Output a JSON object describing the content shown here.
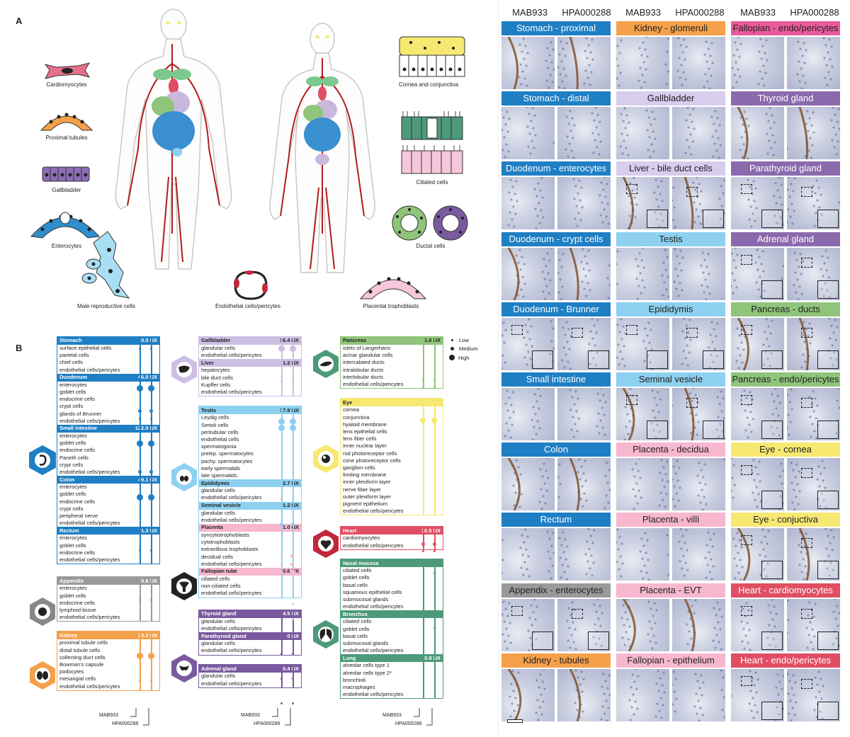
{
  "panel_a_label": "A",
  "panel_b_label": "B",
  "cell_types": {
    "cardiomyocytes": "Cardiomyocytes",
    "proximal_tubules": "Proximal tubules",
    "gallbladder": "Gallbladder",
    "enterocytes": "Enterocytes",
    "male_reproductive": "Male reproductive cells",
    "endothelial": "Endothelial cells/pericytes",
    "placental": "Placental trophoblasts",
    "cornea": "Cornea and conjunctiva",
    "ciliated": "Ciliated cells",
    "ductal": "Ductal cells"
  },
  "legend": {
    "low": "Low",
    "medium": "Medium",
    "high": "High"
  },
  "antibody_axis": {
    "ab1": "MAB933",
    "ab2": "HPA000288"
  },
  "colors": {
    "gi_blue": "#1f7fc4",
    "appendix_grey": "#9a9a9a",
    "kidney_orange": "#f5a04a",
    "gallbladder_lilac": "#cdbfe3",
    "testis_lightblue": "#8dd0ef",
    "placenta_pink": "#f6b7cf",
    "endocrine_purple": "#7a5a9f",
    "pancreas_green": "#8fc47a",
    "eye_yellow": "#f7e872",
    "heart_red": "#e04e63",
    "resp_green": "#4c9a7a"
  },
  "col1": [
    {
      "name": "Stomach",
      "nx": "0.5 NX",
      "color": "#1f7fc4",
      "rows": [
        "surface epithelial cells",
        "parietal cells",
        "chief cells",
        "endothelial cells/pericytes"
      ]
    },
    {
      "name": "Duodenum",
      "nx": "46.0 NX",
      "color": "#1f7fc4",
      "rows": [
        "enterocytes",
        "goblet cells",
        "endocrine cells",
        "crypt cells",
        "glands of Brunner",
        "endothelial cells/pericytes"
      ]
    },
    {
      "name": "Small intestine",
      "nx": "122.0 NX",
      "color": "#1f7fc4",
      "rows": [
        "enterocytes",
        "goblet cells",
        "endocrine cells",
        "Paneth cells",
        "crypt cells",
        "endothelial cells/pericytes"
      ]
    },
    {
      "name": "Colon",
      "nx": "49.1 NX",
      "color": "#1f7fc4",
      "rows": [
        "enterocytes",
        "goblet cells",
        "endocrine cells",
        "crypt cells",
        "peripheral nerve",
        "endothelial cells/pericytes"
      ]
    },
    {
      "name": "Rectum",
      "nx": "1.3 NX",
      "color": "#1f7fc4",
      "rows": [
        "enterocytes",
        "goblet cells",
        "endocrine cells",
        "endothelial cells/pericytes"
      ]
    },
    {
      "name": "Appendix",
      "nx": "0.8 NX",
      "color": "#9a9a9a",
      "rows": [
        "enterocytes",
        "goblet cells",
        "endocrine cells",
        "lymphoid tissue",
        "endothelial cells/pericytes"
      ]
    },
    {
      "name": "Kidney",
      "nx": "23.2 NX",
      "color": "#f5a04a",
      "rows": [
        "proximal tubule cells",
        "distal tubule cells",
        "collecting duct cells",
        "Bowman's capsule",
        "podocytes",
        "mesangial cells",
        "endothelial cells/pericytes"
      ]
    }
  ],
  "col2": [
    {
      "name": "Gallbladder",
      "nx": "16.4 NX",
      "color": "#cdbfe3",
      "rows": [
        "glandular cells",
        "endothelial cells/pericytes"
      ]
    },
    {
      "name": "Liver",
      "nx": "1.2 NX",
      "color": "#cdbfe3",
      "rows": [
        "hepatocytes",
        "bile duct cells",
        "Kupffer cells",
        "endothelial cells/pericytes"
      ]
    },
    {
      "name": "Testis",
      "nx": "17.9 NX",
      "color": "#8dd0ef",
      "rows": [
        "Leydig cells",
        "Sertoli cells",
        "peritubular cells",
        "endothelial cells",
        "spermatogonia",
        "prelep. spermatocytes",
        "pachy. spermatocytes",
        "early spermatids",
        "late spermatids"
      ]
    },
    {
      "name": "Epididymis",
      "nx": "2.7 NX",
      "color": "#8dd0ef",
      "rows": [
        "glandular cells",
        "endothelial cells/pericytes"
      ]
    },
    {
      "name": "Seminal vesicle",
      "nx": "1.2 NX",
      "color": "#8dd0ef",
      "rows": [
        "glandular cells",
        "endothelial cells/pericytes"
      ]
    },
    {
      "name": "Placenta",
      "nx": "1.0 NX",
      "color": "#f6b7cf",
      "rows": [
        "syncytiotrophoblasts",
        "cytotrophoblasts",
        "extravillous trophoblasts",
        "decidual cells",
        "endothelial cells/pericytes"
      ]
    },
    {
      "name": "Fallopian tube",
      "nx": "0.6 NX",
      "color": "#f6b7cf",
      "rows": [
        "ciliated cells",
        "non-ciliated cells",
        "endothelial cells/pericytes"
      ]
    },
    {
      "name": "Thyroid gland",
      "nx": "4.5 NX",
      "color": "#7a5a9f",
      "rows": [
        "glandular cells",
        "endothelial cells/pericytes"
      ]
    },
    {
      "name": "Parathyroid gland",
      "nx": "0 NX",
      "color": "#7a5a9f",
      "rows": [
        "glandular cells",
        "endothelial cells/pericytes"
      ]
    },
    {
      "name": "Adrenal gland",
      "nx": "0.4 NX",
      "color": "#7a5a9f",
      "rows": [
        "glandular cells",
        "endothelial cells/pericytes"
      ]
    }
  ],
  "col3": [
    {
      "name": "Pancreas",
      "nx": "1.6 NX",
      "color": "#8fc47a",
      "rows": [
        "islets of Langerhans",
        "acinar glandular cells",
        "intercalated ducts",
        "intralobular ducts",
        "interlobular ducts",
        "endothelial cells/pericytes"
      ]
    },
    {
      "name": "Eye",
      "nx": "",
      "color": "#f7e872",
      "rows": [
        "cornea",
        "conjunctiva",
        "hyaloid membrane",
        "lens epithelial cells",
        "lens fiber cells",
        "inner nuclear layer",
        "rod photoreceptor cells",
        "cone photoreceptor cells",
        "ganglion cells",
        "limiting membrane",
        "inner plexiform layer",
        "nerve fiber layer",
        "outer plexiform layer",
        "pigment epithelium",
        "endothelial cells/pericytes"
      ]
    },
    {
      "name": "Heart",
      "nx": "10.5 NX",
      "color": "#e04e63",
      "rows": [
        "cardiomyocytes",
        "endothelial cells/pericytes"
      ]
    },
    {
      "name": "Nasal mucosa",
      "nx": "",
      "color": "#4c9a7a",
      "rows": [
        "ciliated cells",
        "goblet cells",
        "basal cells",
        "squamous epithelial cells",
        "submucosal glands",
        "endothelial cells/pericytes"
      ]
    },
    {
      "name": "Bronchus",
      "nx": "",
      "color": "#4c9a7a",
      "rows": [
        "ciliated cells",
        "goblet cells",
        "basal cells",
        "submucosal glands",
        "endothelial cells/pericytes"
      ]
    },
    {
      "name": "Lung",
      "nx": "0.8 NX",
      "color": "#4c9a7a",
      "rows": [
        "alveolar cells type 1",
        "alveolar cells type 2*",
        "bronchioli",
        "macrophages",
        "endothelial cells/pericytes"
      ]
    }
  ],
  "right_panel": {
    "col_headers": [
      "MAB933",
      "HPA000288",
      "MAB933",
      "HPA000288",
      "MAB933",
      "HPA000288"
    ],
    "tiles": [
      [
        "Stomach - proximal",
        "Kidney - glomeruli",
        "Fallopian - endo/pericytes"
      ],
      [
        "Stomach - distal",
        "Gallbladder",
        "Thyroid gland"
      ],
      [
        "Duodenum - enterocytes",
        "Liver - bile duct cells",
        "Parathyroid gland"
      ],
      [
        "Duodenum - crypt cells",
        "Testis",
        "Adrenal gland"
      ],
      [
        "Duodenum - Brunner",
        "Epididymis",
        "Pancreas - ducts"
      ],
      [
        "Small intestine",
        "Seminal vesicle",
        "Pancreas - endo/pericytes"
      ],
      [
        "Colon",
        "Placenta - decidua",
        "Eye - cornea"
      ],
      [
        "Rectum",
        "Placenta - villi",
        "Eye - conjuctiva"
      ],
      [
        "Appendix - enterocytes",
        "Placenta - EVT",
        "Heart - cardiomyocytes"
      ],
      [
        "Kidney - tubules",
        "Fallopian - epithelium",
        "Heart - endo/pericytes"
      ]
    ],
    "tile_colors": [
      [
        "#1f7fc4",
        "#f5a04a",
        "#e85a9b"
      ],
      [
        "#1f7fc4",
        "#d9cdee",
        "#8a6aad"
      ],
      [
        "#1f7fc4",
        "#d9cdee",
        "#8a6aad"
      ],
      [
        "#1f7fc4",
        "#8dd0ef",
        "#8a6aad"
      ],
      [
        "#1f7fc4",
        "#8dd0ef",
        "#8fc47a"
      ],
      [
        "#1f7fc4",
        "#8dd0ef",
        "#8fc47a"
      ],
      [
        "#1f7fc4",
        "#f6b7cf",
        "#f7e872"
      ],
      [
        "#1f7fc4",
        "#f6b7cf",
        "#f7e872"
      ],
      [
        "#9a9a9a",
        "#f6b7cf",
        "#e04e63"
      ],
      [
        "#f5a04a",
        "#f6b7cf",
        "#e04e63"
      ]
    ],
    "tile_text_light": [
      [
        true,
        false,
        false
      ],
      [
        true,
        false,
        true
      ],
      [
        true,
        false,
        true
      ],
      [
        true,
        false,
        true
      ],
      [
        true,
        false,
        false
      ],
      [
        true,
        false,
        false
      ],
      [
        true,
        false,
        false
      ],
      [
        true,
        false,
        false
      ],
      [
        false,
        false,
        true
      ],
      [
        false,
        false,
        true
      ]
    ]
  }
}
